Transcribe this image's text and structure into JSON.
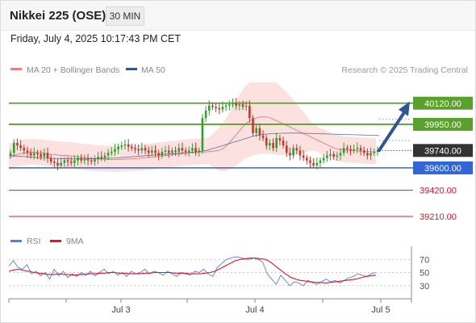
{
  "header": {
    "title": "Nikkei 225 (OSE)",
    "timeframe": "30 MIN",
    "datetime": "Friday, July 4, 2025 10:17:43 PM CET"
  },
  "legend": {
    "ma20": {
      "label": "MA 20 + Bollinger Bands",
      "color": "#f08080"
    },
    "ma50": {
      "label": "MA 50",
      "color": "#2f5597"
    },
    "credit": "Research © 2025 Trading Central"
  },
  "rsi_legend": {
    "rsi": {
      "label": "RSI",
      "color": "#5b7fd6"
    },
    "ma9": {
      "label": "9MA",
      "color": "#e0142a"
    }
  },
  "chart_data": [
    {
      "type": "candlestick",
      "x_tick_labels": [
        "Jul 3",
        "Jul 4",
        "Jul 5"
      ],
      "ylim": [
        39100,
        40300
      ],
      "closes": [
        39720,
        39800,
        39780,
        39760,
        39740,
        39720,
        39700,
        39720,
        39710,
        39690,
        39720,
        39680,
        39650,
        39640,
        39620,
        39640,
        39660,
        39650,
        39640,
        39660,
        39680,
        39660,
        39670,
        39660,
        39650,
        39670,
        39690,
        39680,
        39700,
        39720,
        39730,
        39750,
        39770,
        39780,
        39790,
        39770,
        39760,
        39750,
        39740,
        39760,
        39740,
        39720,
        39740,
        39720,
        39700,
        39730,
        39740,
        39720,
        39740,
        39730,
        39760,
        39740,
        39730,
        39740,
        39760,
        39730,
        39740,
        40000,
        40060,
        40100,
        40090,
        40080,
        40070,
        40090,
        40100,
        40110,
        40120,
        40100,
        40110,
        40090,
        40100,
        40000,
        39880,
        39920,
        39860,
        39840,
        39780,
        39800,
        39760,
        39840,
        39820,
        39780,
        39720,
        39700,
        39760,
        39740,
        39700,
        39680,
        39660,
        39640,
        39620,
        39640,
        39660,
        39680,
        39700,
        39710,
        39690,
        39700,
        39720,
        39760,
        39750,
        39740,
        39750,
        39760,
        39740,
        39720,
        39700,
        39720,
        39730,
        39740
      ],
      "moving_averages": [
        {
          "name": "MA 20",
          "color": "#f08080",
          "values": [
            39680,
            39700,
            39715,
            39720,
            39725,
            39725,
            39720,
            39715,
            39710,
            39705,
            39700,
            39700,
            39695,
            39690,
            39685,
            39680,
            39675,
            39672,
            39670,
            39668,
            39667,
            39668,
            39670,
            39672,
            39675,
            39678,
            39682,
            39685,
            39690,
            39695,
            39700,
            39705,
            39710,
            39715,
            39720,
            39722,
            39725,
            39728,
            39730,
            39735,
            39740,
            39760,
            39800,
            39850,
            39900,
            39950,
            39980,
            40000,
            40010,
            40010,
            40000,
            39980,
            39960,
            39940,
            39920,
            39900,
            39880,
            39860,
            39840,
            39820,
            39800,
            39780,
            39760,
            39750,
            39745,
            39740,
            39738,
            39735,
            39733,
            39730,
            39728
          ]
        },
        {
          "name": "MA 50",
          "color": "#2f5597",
          "values": [
            39700,
            39695,
            39690,
            39685,
            39680,
            39678,
            39675,
            39673,
            39672,
            39672,
            39673,
            39675,
            39678,
            39680,
            39685,
            39690,
            39695,
            39700,
            39705,
            39710,
            39715,
            39720,
            39725,
            39730,
            39740,
            39760,
            39780,
            39800,
            39820,
            39840,
            39860,
            39870,
            39875,
            39878,
            39880,
            39880,
            39878,
            39876,
            39874,
            39872,
            39870,
            39868,
            39866,
            39864,
            39862,
            39860
          ]
        }
      ]
    },
    {
      "type": "line",
      "name": "RSI",
      "y_tick_labels": [
        "70",
        "50",
        "30"
      ],
      "ylim": [
        10,
        90
      ],
      "series": [
        {
          "name": "RSI",
          "values": [
            60,
            68,
            58,
            55,
            62,
            48,
            52,
            45,
            50,
            40,
            55,
            45,
            52,
            42,
            48,
            44,
            50,
            46,
            52,
            45,
            50,
            55,
            48,
            52,
            46,
            50,
            44,
            52,
            48,
            50,
            55,
            48,
            52,
            50,
            46,
            52,
            48,
            44,
            50,
            48,
            46,
            52,
            50,
            55,
            48,
            44,
            58,
            64,
            70,
            72,
            74,
            73,
            71,
            70,
            72,
            70,
            66,
            48,
            40,
            32,
            46,
            38,
            30,
            36,
            34,
            30,
            38,
            34,
            32,
            36,
            40,
            36,
            38,
            34,
            38,
            42,
            44,
            48,
            46,
            44,
            48,
            50
          ]
        },
        {
          "name": "9MA",
          "values": [
            52,
            54,
            55,
            53,
            52,
            50,
            49,
            48,
            47,
            47,
            48,
            47,
            47,
            46,
            47,
            47,
            48,
            48,
            49,
            49,
            50,
            50,
            49,
            49,
            48,
            48,
            48,
            49,
            49,
            50,
            50,
            50,
            50,
            49,
            49,
            49,
            48,
            48,
            48,
            49,
            50,
            52,
            56,
            60,
            64,
            68,
            70,
            71,
            72,
            72,
            71,
            70,
            66,
            60,
            54,
            48,
            43,
            40,
            38,
            37,
            36,
            35,
            35,
            34,
            35,
            36,
            37,
            38,
            39,
            40,
            42,
            44,
            45,
            46
          ]
        }
      ]
    }
  ],
  "levels": [
    {
      "value": "40120.00",
      "color": "#5aa02c",
      "kind": "target"
    },
    {
      "value": "39950.00",
      "color": "#5aa02c",
      "kind": "target"
    },
    {
      "value": "39740.00",
      "color": "#333333",
      "kind": "last"
    },
    {
      "value": "39600.00",
      "color": "#3266d6",
      "kind": "pivot"
    },
    {
      "value": "39420.00",
      "color": "#e0142a",
      "kind": "support"
    },
    {
      "value": "39210.00",
      "color": "#e0142a",
      "kind": "support"
    }
  ]
}
